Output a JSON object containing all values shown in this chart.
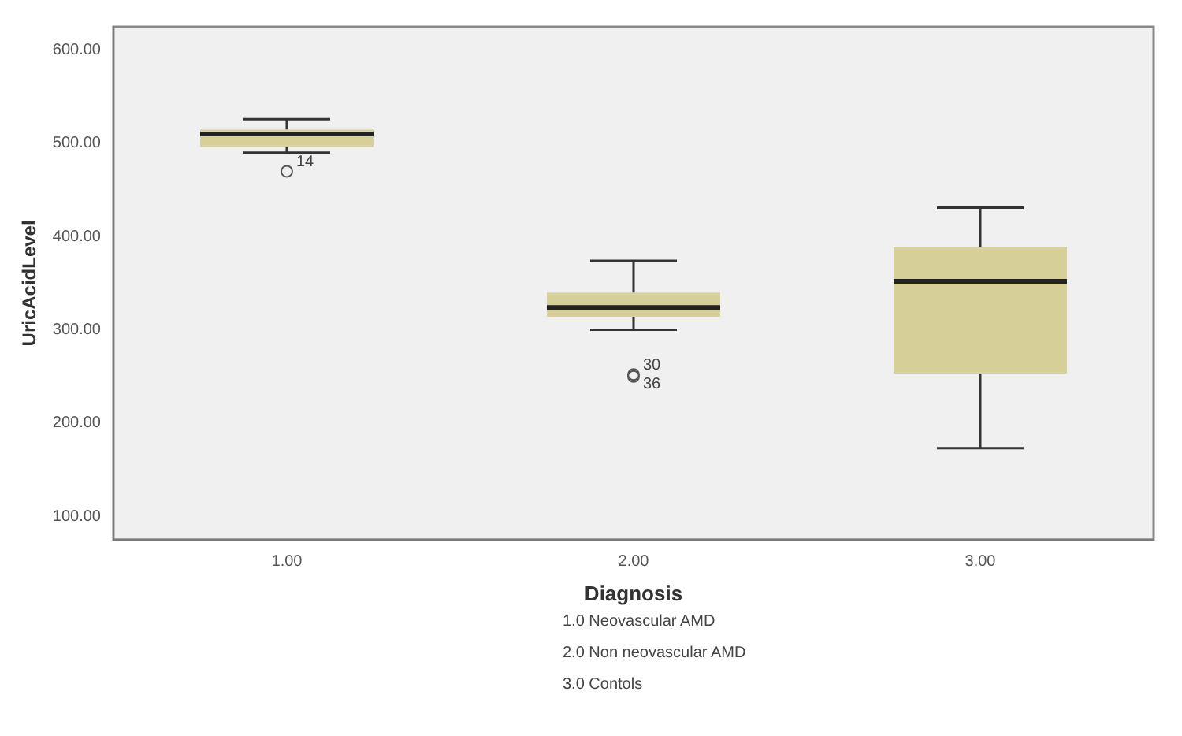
{
  "chart_data": {
    "type": "box",
    "xlabel": "Diagnosis",
    "ylabel": "UricAcidLevel",
    "categories": [
      "1.00",
      "2.00",
      "3.00"
    ],
    "color": "#d6cf98",
    "boxes": [
      {
        "low": 490,
        "q1": 496,
        "median": 510,
        "q3": 515,
        "high": 526,
        "outliers": [
          470
        ]
      },
      {
        "low": 300,
        "q1": 314,
        "median": 324,
        "q3": 340,
        "high": 374,
        "outliers": [
          252,
          250
        ]
      },
      {
        "low": 173,
        "q1": 253,
        "median": 352,
        "q3": 389,
        "high": 431
      }
    ],
    "ylim": [
      75,
      625
    ],
    "yticks": [
      {
        "value": 100,
        "label": "100.00"
      },
      {
        "value": 200,
        "label": "200.00"
      },
      {
        "value": 300,
        "label": "300.00"
      },
      {
        "value": 400,
        "label": "400.00"
      },
      {
        "value": 500,
        "label": "500.00"
      },
      {
        "value": 600,
        "label": "600.00"
      }
    ],
    "grid": false,
    "legend": false,
    "marker": "circle",
    "annotations": [
      "14",
      "30",
      "36",
      "1.0 Neovascular AMD",
      "2.0 Non neovascular AMD",
      "3.0 Contols"
    ]
  }
}
